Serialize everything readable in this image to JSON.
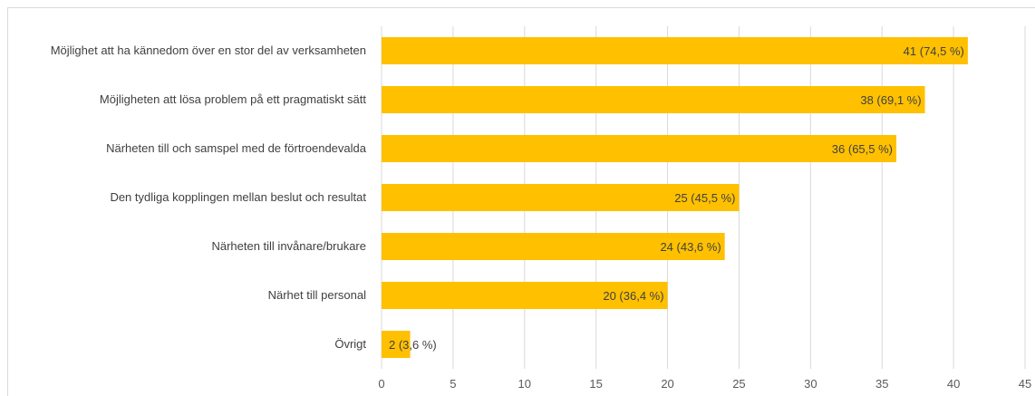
{
  "chart_data": {
    "type": "bar",
    "orientation": "horizontal",
    "categories": [
      "Möjlighet att ha kännedom över en stor del av verksamheten",
      "Möjligheten att lösa problem på ett pragmatiskt sätt",
      "Närheten till och samspel med de förtroendevalda",
      "Den tydliga kopplingen mellan beslut och resultat",
      "Närheten till invånare/brukare",
      "Närhet till personal",
      "Övrigt"
    ],
    "values": [
      41,
      38,
      36,
      25,
      24,
      20,
      2
    ],
    "data_labels": [
      "41 (74,5 %)",
      "38 (69,1 %)",
      "36 (65,5 %)",
      "25 (45,5 %)",
      "24 (43,6 %)",
      "20 (36,4 %)",
      "2 (3,6 %)"
    ],
    "xticks": [
      "0",
      "5",
      "10",
      "15",
      "20",
      "25",
      "30",
      "35",
      "40",
      "45"
    ],
    "xlim": [
      0,
      45
    ],
    "title": "",
    "xlabel": "",
    "ylabel": "",
    "grid": "vertical",
    "legend": "none",
    "bar_color": "#FFC000",
    "grid_color": "#d9d9d9"
  }
}
